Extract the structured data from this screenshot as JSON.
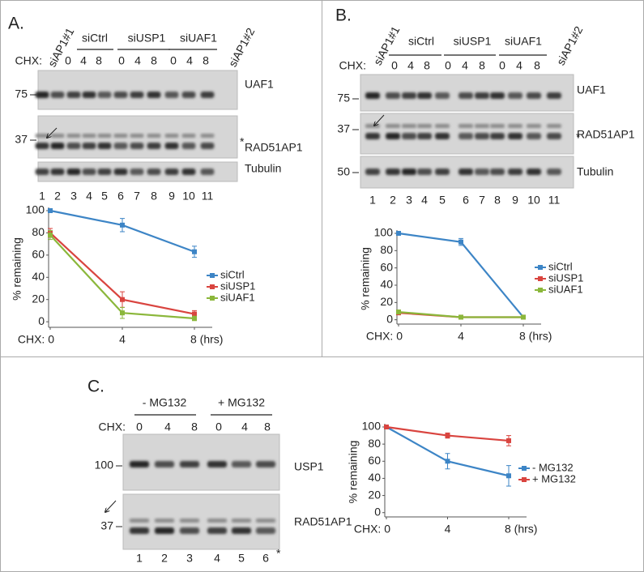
{
  "panel_a": {
    "label": "A.",
    "edge_lanes": [
      "siAP1#1",
      "siAP1#2"
    ],
    "chx": "CHX:",
    "groups": [
      {
        "name": "siCtrl",
        "times": [
          "0",
          "4",
          "8"
        ]
      },
      {
        "name": "siUSP1",
        "times": [
          "0",
          "4",
          "8"
        ]
      },
      {
        "name": "siUAF1",
        "times": [
          "0",
          "4",
          "8"
        ]
      }
    ],
    "blots": [
      {
        "marker": "75",
        "protein": "UAF1"
      },
      {
        "marker": "37",
        "protein": "RAD51AP1",
        "asterisk": "*"
      },
      {
        "protein": "Tubulin"
      }
    ],
    "lane_numbers": [
      "1",
      "2",
      "3",
      "4",
      "5",
      "6",
      "7",
      "8",
      "9",
      "10",
      "11"
    ]
  },
  "panel_b": {
    "label": "B.",
    "edge_lanes": [
      "siAP1#1",
      "siAP1#2"
    ],
    "chx": "CHX:",
    "groups": [
      {
        "name": "siCtrl",
        "times": [
          "0",
          "4",
          "8"
        ]
      },
      {
        "name": "siUSP1",
        "times": [
          "0",
          "4",
          "8"
        ]
      },
      {
        "name": "siUAF1",
        "times": [
          "0",
          "4",
          "8"
        ]
      }
    ],
    "blots": [
      {
        "marker": "75",
        "protein": "UAF1"
      },
      {
        "marker": "37",
        "protein": "RAD51AP1",
        "asterisk": "*"
      },
      {
        "marker": "50",
        "protein": "Tubulin"
      }
    ],
    "lane_numbers": [
      "1",
      "2",
      "3",
      "4",
      "5",
      "6",
      "7",
      "8",
      "9",
      "10",
      "11"
    ]
  },
  "panel_c": {
    "label": "C.",
    "chx": "CHX:",
    "groups": [
      {
        "name": "- MG132",
        "times": [
          "0",
          "4",
          "8"
        ]
      },
      {
        "name": "+ MG132",
        "times": [
          "0",
          "4",
          "8"
        ]
      }
    ],
    "blots": [
      {
        "marker": "100",
        "protein": "USP1"
      },
      {
        "marker": "37",
        "protein": "RAD51AP1",
        "asterisk": "*"
      }
    ],
    "lane_numbers": [
      "1",
      "2",
      "3",
      "4",
      "5",
      "6"
    ]
  },
  "chart_data": [
    {
      "type": "line",
      "y_label": "% remaining",
      "x": [
        0,
        4,
        8
      ],
      "xlim": [
        0,
        8
      ],
      "xticks": [
        {
          "value": 0,
          "label": "CHX: 0"
        },
        4,
        {
          "value": 8,
          "label": "8 (hrs)"
        }
      ],
      "ylim": [
        -5,
        100
      ],
      "yticks": [
        0,
        20,
        40,
        60,
        80,
        100
      ],
      "grid": false,
      "legend": "right",
      "series": [
        {
          "name": "siCtrl",
          "color": "#3d85c6",
          "values": [
            100,
            87,
            63
          ],
          "errors": [
            0,
            6,
            5
          ]
        },
        {
          "name": "siUSP1",
          "color": "#d9443f",
          "values": [
            80,
            20,
            7
          ],
          "errors": [
            4,
            7,
            3
          ]
        },
        {
          "name": "siUAF1",
          "color": "#8bb73b",
          "values": [
            78,
            8,
            3
          ],
          "errors": [
            4,
            5,
            2
          ]
        }
      ]
    },
    {
      "type": "line",
      "y_label": "% remaining",
      "x": [
        0,
        4,
        8
      ],
      "xlim": [
        0,
        8
      ],
      "xticks": [
        {
          "value": 0,
          "label": "CHX: 0"
        },
        4,
        {
          "value": 8,
          "label": "8 (hrs)"
        }
      ],
      "ylim": [
        -5,
        100
      ],
      "yticks": [
        0,
        20,
        40,
        60,
        80,
        100
      ],
      "grid": false,
      "legend": "right",
      "series": [
        {
          "name": "siCtrl",
          "color": "#3d85c6",
          "values": [
            100,
            90,
            3
          ],
          "errors": [
            0,
            4,
            2
          ]
        },
        {
          "name": "siUSP1",
          "color": "#d9443f",
          "values": [
            8,
            3,
            3
          ],
          "errors": [
            2,
            2,
            2
          ]
        },
        {
          "name": "siUAF1",
          "color": "#8bb73b",
          "values": [
            9,
            3,
            3
          ],
          "errors": [
            2,
            2,
            2
          ]
        }
      ]
    },
    {
      "type": "line",
      "y_label": "% remaining",
      "x": [
        0,
        4,
        8
      ],
      "xlim": [
        0,
        8
      ],
      "xticks": [
        {
          "value": 0,
          "label": "CHX: 0"
        },
        4,
        {
          "value": 8,
          "label": "8 (hrs)"
        }
      ],
      "ylim": [
        -5,
        100
      ],
      "yticks": [
        0,
        20,
        40,
        60,
        80,
        100
      ],
      "grid": false,
      "legend": "right",
      "series": [
        {
          "name": "- MG132",
          "color": "#3d85c6",
          "values": [
            100,
            60,
            43
          ],
          "errors": [
            0,
            9,
            12
          ]
        },
        {
          "name": "+ MG132",
          "color": "#d9443f",
          "values": [
            100,
            90,
            84
          ],
          "errors": [
            2,
            3,
            6
          ]
        }
      ]
    }
  ]
}
